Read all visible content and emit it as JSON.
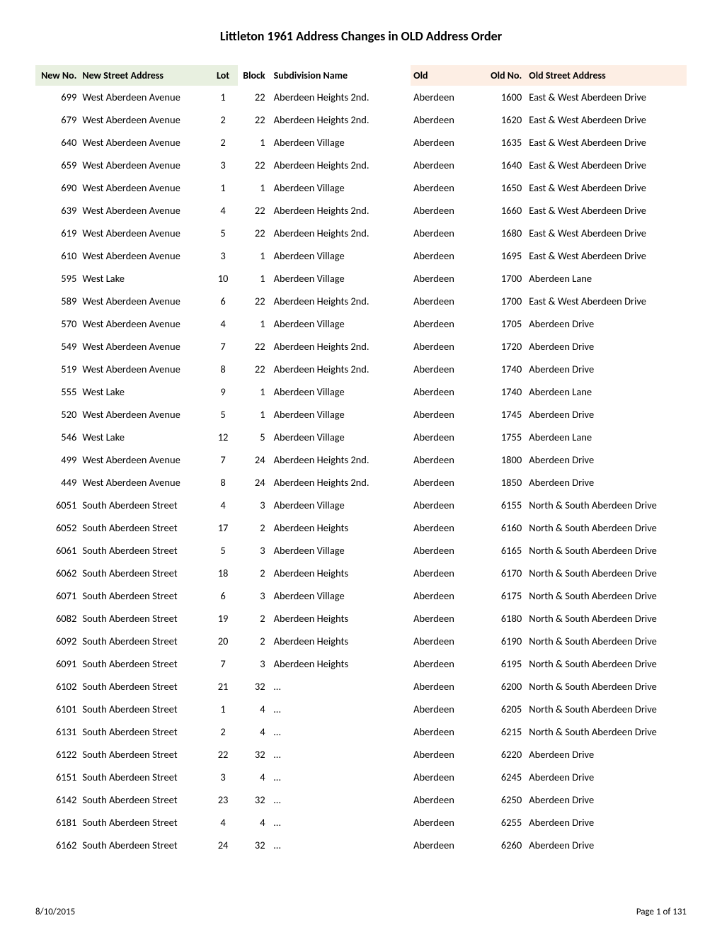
{
  "title": "Littleton 1961 Address Changes in OLD Address Order",
  "headers": {
    "newno": "New No.",
    "newstreet": "New Street Address",
    "lot": "Lot",
    "block": "Block",
    "subdiv": "Subdivision Name",
    "old": "Old",
    "oldno": "Old No.",
    "oldstreet": "Old Street Address"
  },
  "colors": {
    "hdr_new_bg": "#e8f0e0",
    "hdr_old_bg": "#fdeee4",
    "text": "#000000",
    "background": "#ffffff"
  },
  "typography": {
    "title_fontsize": 18,
    "title_fontweight": "bold",
    "header_fontsize": 14,
    "body_fontsize": 14.5,
    "footer_fontsize": 13,
    "font_family": "Calibri"
  },
  "rows": [
    {
      "newno": "699",
      "newstreet": "West Aberdeen Avenue",
      "lot": "1",
      "block": "22",
      "subdiv": "Aberdeen Heights 2nd.",
      "old": "Aberdeen",
      "oldno": "1600",
      "oldstreet": "East & West Aberdeen Drive"
    },
    {
      "newno": "679",
      "newstreet": "West Aberdeen Avenue",
      "lot": "2",
      "block": "22",
      "subdiv": "Aberdeen Heights 2nd.",
      "old": "Aberdeen",
      "oldno": "1620",
      "oldstreet": "East & West Aberdeen Drive"
    },
    {
      "newno": "640",
      "newstreet": "West Aberdeen Avenue",
      "lot": "2",
      "block": "1",
      "subdiv": "Aberdeen Village",
      "old": "Aberdeen",
      "oldno": "1635",
      "oldstreet": "East & West Aberdeen Drive"
    },
    {
      "newno": "659",
      "newstreet": "West Aberdeen Avenue",
      "lot": "3",
      "block": "22",
      "subdiv": "Aberdeen Heights 2nd.",
      "old": "Aberdeen",
      "oldno": "1640",
      "oldstreet": "East & West Aberdeen Drive"
    },
    {
      "newno": "690",
      "newstreet": "West Aberdeen Avenue",
      "lot": "1",
      "block": "1",
      "subdiv": "Aberdeen Village",
      "old": "Aberdeen",
      "oldno": "1650",
      "oldstreet": "East & West Aberdeen Drive"
    },
    {
      "newno": "639",
      "newstreet": "West Aberdeen Avenue",
      "lot": "4",
      "block": "22",
      "subdiv": "Aberdeen Heights 2nd.",
      "old": "Aberdeen",
      "oldno": "1660",
      "oldstreet": "East & West Aberdeen Drive"
    },
    {
      "newno": "619",
      "newstreet": "West Aberdeen Avenue",
      "lot": "5",
      "block": "22",
      "subdiv": "Aberdeen Heights 2nd.",
      "old": "Aberdeen",
      "oldno": "1680",
      "oldstreet": "East & West Aberdeen Drive"
    },
    {
      "newno": "610",
      "newstreet": "West Aberdeen Avenue",
      "lot": "3",
      "block": "1",
      "subdiv": "Aberdeen Village",
      "old": "Aberdeen",
      "oldno": "1695",
      "oldstreet": "East & West Aberdeen Drive"
    },
    {
      "newno": "595",
      "newstreet": "West Lake",
      "lot": "10",
      "block": "1",
      "subdiv": "Aberdeen Village",
      "old": "Aberdeen",
      "oldno": "1700",
      "oldstreet": "Aberdeen Lane"
    },
    {
      "newno": "589",
      "newstreet": "West Aberdeen Avenue",
      "lot": "6",
      "block": "22",
      "subdiv": "Aberdeen Heights 2nd.",
      "old": "Aberdeen",
      "oldno": "1700",
      "oldstreet": "East & West Aberdeen Drive"
    },
    {
      "newno": "570",
      "newstreet": "West Aberdeen Avenue",
      "lot": "4",
      "block": "1",
      "subdiv": "Aberdeen Village",
      "old": "Aberdeen",
      "oldno": "1705",
      "oldstreet": "Aberdeen Drive"
    },
    {
      "newno": "549",
      "newstreet": "West Aberdeen Avenue",
      "lot": "7",
      "block": "22",
      "subdiv": "Aberdeen Heights 2nd.",
      "old": "Aberdeen",
      "oldno": "1720",
      "oldstreet": "Aberdeen Drive"
    },
    {
      "newno": "519",
      "newstreet": "West Aberdeen Avenue",
      "lot": "8",
      "block": "22",
      "subdiv": "Aberdeen Heights 2nd.",
      "old": "Aberdeen",
      "oldno": "1740",
      "oldstreet": "Aberdeen Drive"
    },
    {
      "newno": "555",
      "newstreet": "West Lake",
      "lot": "9",
      "block": "1",
      "subdiv": "Aberdeen Village",
      "old": "Aberdeen",
      "oldno": "1740",
      "oldstreet": "Aberdeen Lane"
    },
    {
      "newno": "520",
      "newstreet": "West Aberdeen Avenue",
      "lot": "5",
      "block": "1",
      "subdiv": "Aberdeen Village",
      "old": "Aberdeen",
      "oldno": "1745",
      "oldstreet": "Aberdeen Drive"
    },
    {
      "newno": "546",
      "newstreet": "West Lake",
      "lot": "12",
      "block": "5",
      "subdiv": "Aberdeen Village",
      "old": "Aberdeen",
      "oldno": "1755",
      "oldstreet": "Aberdeen Lane"
    },
    {
      "newno": "499",
      "newstreet": "West Aberdeen Avenue",
      "lot": "7",
      "block": "24",
      "subdiv": "Aberdeen Heights 2nd.",
      "old": "Aberdeen",
      "oldno": "1800",
      "oldstreet": "Aberdeen Drive"
    },
    {
      "newno": "449",
      "newstreet": "West Aberdeen Avenue",
      "lot": "8",
      "block": "24",
      "subdiv": "Aberdeen Heights 2nd.",
      "old": "Aberdeen",
      "oldno": "1850",
      "oldstreet": "Aberdeen Drive"
    },
    {
      "newno": "6051",
      "newstreet": "South Aberdeen Street",
      "lot": "4",
      "block": "3",
      "subdiv": "Aberdeen Village",
      "old": "Aberdeen",
      "oldno": "6155",
      "oldstreet": "North & South Aberdeen Drive"
    },
    {
      "newno": "6052",
      "newstreet": "South Aberdeen Street",
      "lot": "17",
      "block": "2",
      "subdiv": "Aberdeen Heights",
      "old": "Aberdeen",
      "oldno": "6160",
      "oldstreet": "North & South Aberdeen Drive"
    },
    {
      "newno": "6061",
      "newstreet": "South Aberdeen Street",
      "lot": "5",
      "block": "3",
      "subdiv": "Aberdeen Village",
      "old": "Aberdeen",
      "oldno": "6165",
      "oldstreet": "North & South Aberdeen Drive"
    },
    {
      "newno": "6062",
      "newstreet": "South Aberdeen Street",
      "lot": "18",
      "block": "2",
      "subdiv": "Aberdeen Heights",
      "old": "Aberdeen",
      "oldno": "6170",
      "oldstreet": "North & South Aberdeen Drive"
    },
    {
      "newno": "6071",
      "newstreet": "South Aberdeen Street",
      "lot": "6",
      "block": "3",
      "subdiv": "Aberdeen Village",
      "old": "Aberdeen",
      "oldno": "6175",
      "oldstreet": "North & South Aberdeen Drive"
    },
    {
      "newno": "6082",
      "newstreet": "South Aberdeen Street",
      "lot": "19",
      "block": "2",
      "subdiv": "Aberdeen Heights",
      "old": "Aberdeen",
      "oldno": "6180",
      "oldstreet": "North & South Aberdeen Drive"
    },
    {
      "newno": "6092",
      "newstreet": "South Aberdeen Street",
      "lot": "20",
      "block": "2",
      "subdiv": "Aberdeen Heights",
      "old": "Aberdeen",
      "oldno": "6190",
      "oldstreet": "North & South Aberdeen Drive"
    },
    {
      "newno": "6091",
      "newstreet": "South Aberdeen Street",
      "lot": "7",
      "block": "3",
      "subdiv": "Aberdeen Heights",
      "old": "Aberdeen",
      "oldno": "6195",
      "oldstreet": "North & South Aberdeen Drive"
    },
    {
      "newno": "6102",
      "newstreet": "South Aberdeen Street",
      "lot": "21",
      "block": "32",
      "subdiv": "…",
      "old": "Aberdeen",
      "oldno": "6200",
      "oldstreet": "North & South Aberdeen Drive"
    },
    {
      "newno": "6101",
      "newstreet": "South Aberdeen Street",
      "lot": "1",
      "block": "4",
      "subdiv": "…",
      "old": "Aberdeen",
      "oldno": "6205",
      "oldstreet": "North & South Aberdeen Drive"
    },
    {
      "newno": "6131",
      "newstreet": "South Aberdeen Street",
      "lot": "2",
      "block": "4",
      "subdiv": "…",
      "old": "Aberdeen",
      "oldno": "6215",
      "oldstreet": "North & South Aberdeen Drive"
    },
    {
      "newno": "6122",
      "newstreet": "South Aberdeen Street",
      "lot": "22",
      "block": "32",
      "subdiv": "…",
      "old": "Aberdeen",
      "oldno": "6220",
      "oldstreet": "Aberdeen Drive"
    },
    {
      "newno": "6151",
      "newstreet": "South Aberdeen Street",
      "lot": "3",
      "block": "4",
      "subdiv": "…",
      "old": "Aberdeen",
      "oldno": "6245",
      "oldstreet": "Aberdeen Drive"
    },
    {
      "newno": "6142",
      "newstreet": "South Aberdeen Street",
      "lot": "23",
      "block": "32",
      "subdiv": "…",
      "old": "Aberdeen",
      "oldno": "6250",
      "oldstreet": "Aberdeen Drive"
    },
    {
      "newno": "6181",
      "newstreet": "South Aberdeen Street",
      "lot": "4",
      "block": "4",
      "subdiv": "…",
      "old": "Aberdeen",
      "oldno": "6255",
      "oldstreet": "Aberdeen Drive"
    },
    {
      "newno": "6162",
      "newstreet": "South Aberdeen Street",
      "lot": "24",
      "block": "32",
      "subdiv": "…",
      "old": "Aberdeen",
      "oldno": "6260",
      "oldstreet": "Aberdeen Drive"
    }
  ],
  "footer": {
    "date": "8/10/2015",
    "page": "Page 1 of 131"
  }
}
